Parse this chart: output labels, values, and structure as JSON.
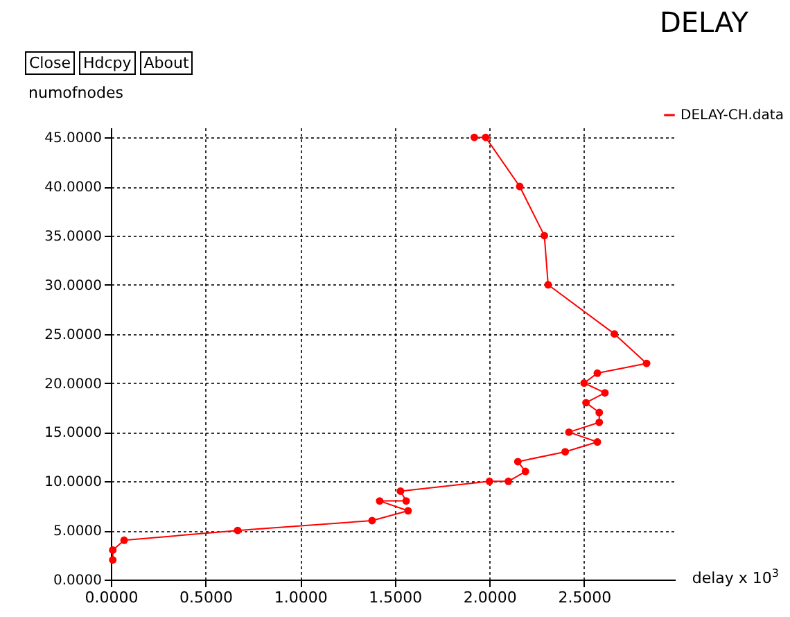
{
  "chart_data": {
    "type": "line",
    "title": "DELAY",
    "xlabel": "delay x 10$^{3}$",
    "ylabel": "numofnodes",
    "annotations": [
      "Close",
      "Hdcpy",
      "About"
    ],
    "series": [
      {
        "name": "DELAY-CH.data",
        "color": "#ff0000",
        "x": [
          0.01,
          0.01,
          0.07,
          0.67,
          1.38,
          1.57,
          1.42,
          1.56,
          1.53,
          2.0,
          2.1,
          2.19,
          2.15,
          2.4,
          2.57,
          2.42,
          2.58,
          2.58,
          2.51,
          2.61,
          2.5,
          2.57,
          2.83,
          2.66,
          2.31,
          2.29,
          2.16,
          1.98,
          1.92
        ],
        "values": [
          2,
          3,
          4,
          5,
          6,
          7,
          8,
          8,
          9,
          10,
          10,
          11,
          12,
          13,
          14,
          15,
          16,
          17,
          18,
          19,
          20,
          21,
          22,
          25,
          30,
          35,
          40,
          45,
          45
        ]
      }
    ],
    "xlim": [
      0,
      2.98
    ],
    "ylim": [
      0,
      46
    ],
    "xticks": [
      {
        "value": 0,
        "label": "0.0000"
      },
      {
        "value": 0.5,
        "label": "0.5000"
      },
      {
        "value": 1,
        "label": "1.0000"
      },
      {
        "value": 1.5,
        "label": "1.5000"
      },
      {
        "value": 2,
        "label": "2.0000"
      },
      {
        "value": 2.5,
        "label": "2.5000"
      }
    ],
    "yticks": [
      {
        "value": 0,
        "label": "0.0000"
      },
      {
        "value": 5,
        "label": "5.0000"
      },
      {
        "value": 10,
        "label": "10.0000"
      },
      {
        "value": 15,
        "label": "15.0000"
      },
      {
        "value": 20,
        "label": "20.0000"
      },
      {
        "value": 25,
        "label": "25.0000"
      },
      {
        "value": 30,
        "label": "30.0000"
      },
      {
        "value": 35,
        "label": "35.0000"
      },
      {
        "value": 40,
        "label": "40.0000"
      },
      {
        "value": 45,
        "label": "45.0000"
      }
    ],
    "grid": true,
    "legend": "top right",
    "marker": "circle",
    "line_style": "solid"
  }
}
